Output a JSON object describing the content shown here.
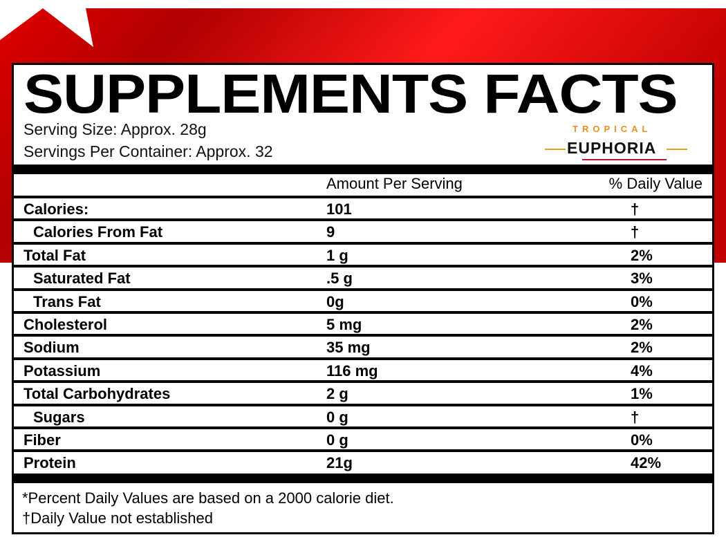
{
  "header": {
    "title": "SUPPLEMENTS FACTS",
    "serving_size": "Serving Size: Approx. 28g",
    "servings_per_container": "Servings Per Container: Approx. 32",
    "logo": {
      "top": "TROPICAL",
      "bottom": "EUPHORIA"
    }
  },
  "table": {
    "columns": [
      "Amount Per Serving",
      "% Daily Value"
    ],
    "rows": [
      {
        "name": "Calories:",
        "amount": "101",
        "daily_value": "†",
        "indent": false
      },
      {
        "name": "Calories From Fat",
        "amount": "9",
        "daily_value": "†",
        "indent": true
      },
      {
        "name": "Total Fat",
        "amount": "1 g",
        "daily_value": "2%",
        "indent": false
      },
      {
        "name": "Saturated Fat",
        "amount": ".5 g",
        "daily_value": "3%",
        "indent": true
      },
      {
        "name": "Trans Fat",
        "amount": "0g",
        "daily_value": "0%",
        "indent": true
      },
      {
        "name": "Cholesterol",
        "amount": "5 mg",
        "daily_value": "2%",
        "indent": false
      },
      {
        "name": "Sodium",
        "amount": "35 mg",
        "daily_value": "2%",
        "indent": false
      },
      {
        "name": "Potassium",
        "amount": "116 mg",
        "daily_value": "4%",
        "indent": false
      },
      {
        "name": "Total Carbohydrates",
        "amount": "2 g",
        "daily_value": "1%",
        "indent": false
      },
      {
        "name": "Sugars",
        "amount": "0 g",
        "daily_value": "†",
        "indent": true
      },
      {
        "name": "Fiber",
        "amount": "0 g",
        "daily_value": "0%",
        "indent": false
      },
      {
        "name": "Protein",
        "amount": "21g",
        "daily_value": "42%",
        "indent": false
      }
    ]
  },
  "footer": {
    "notes": [
      "*Percent Daily Values are based on a 2000 calorie diet.",
      "†Daily Value not established"
    ]
  }
}
